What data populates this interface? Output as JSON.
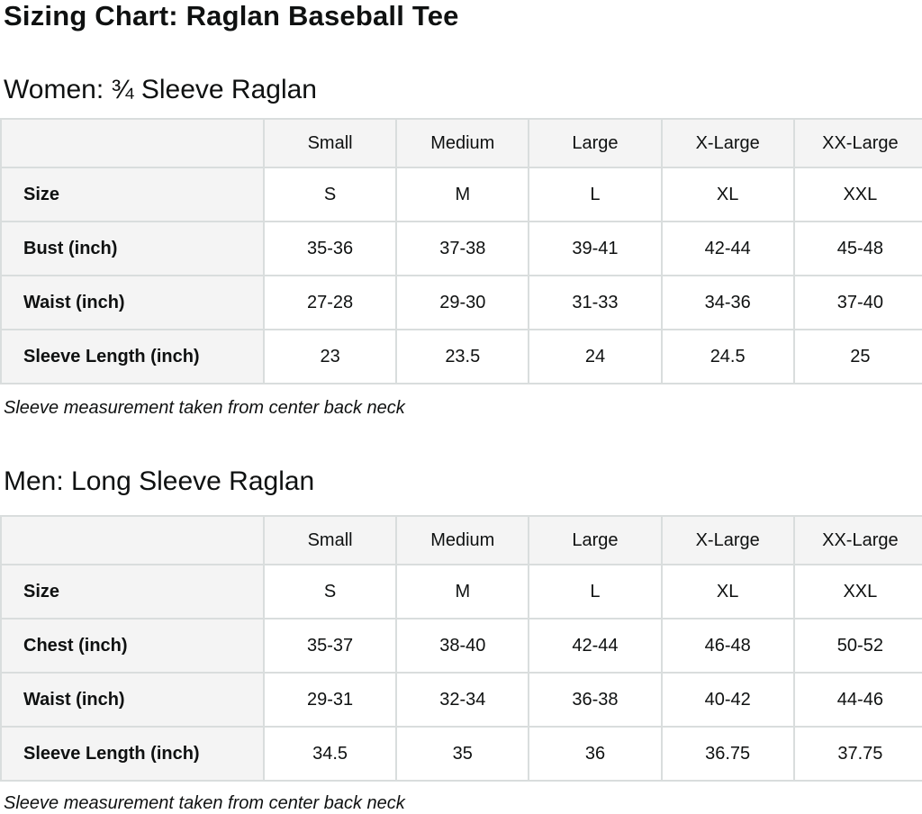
{
  "page": {
    "title": "Sizing Chart: Raglan Baseball Tee"
  },
  "colors": {
    "text": "#0f1111",
    "table_border": "#d9dddd",
    "header_background": "#f4f4f4",
    "cell_background": "#ffffff"
  },
  "sections": [
    {
      "heading": "Women: ¾ Sleeve Raglan",
      "columns": [
        "",
        "Small",
        "Medium",
        "Large",
        "X-Large",
        "XX-Large"
      ],
      "rows": [
        {
          "label": "Size",
          "values": [
            "S",
            "M",
            "L",
            "XL",
            "XXL"
          ]
        },
        {
          "label": "Bust (inch)",
          "values": [
            "35-36",
            "37-38",
            "39-41",
            "42-44",
            "45-48"
          ]
        },
        {
          "label": "Waist (inch)",
          "values": [
            "27-28",
            "29-30",
            "31-33",
            "34-36",
            "37-40"
          ]
        },
        {
          "label": "Sleeve Length (inch)",
          "values": [
            "23",
            "23.5",
            "24",
            "24.5",
            "25"
          ]
        }
      ],
      "note": "Sleeve measurement taken from center back neck"
    },
    {
      "heading": "Men: Long Sleeve Raglan",
      "columns": [
        "",
        "Small",
        "Medium",
        "Large",
        "X-Large",
        "XX-Large"
      ],
      "rows": [
        {
          "label": "Size",
          "values": [
            "S",
            "M",
            "L",
            "XL",
            "XXL"
          ]
        },
        {
          "label": "Chest (inch)",
          "values": [
            "35-37",
            "38-40",
            "42-44",
            "46-48",
            "50-52"
          ]
        },
        {
          "label": "Waist (inch)",
          "values": [
            "29-31",
            "32-34",
            "36-38",
            "40-42",
            "44-46"
          ]
        },
        {
          "label": "Sleeve Length (inch)",
          "values": [
            "34.5",
            "35",
            "36",
            "36.75",
            "37.75"
          ]
        }
      ],
      "note": "Sleeve measurement taken from center back neck"
    }
  ]
}
